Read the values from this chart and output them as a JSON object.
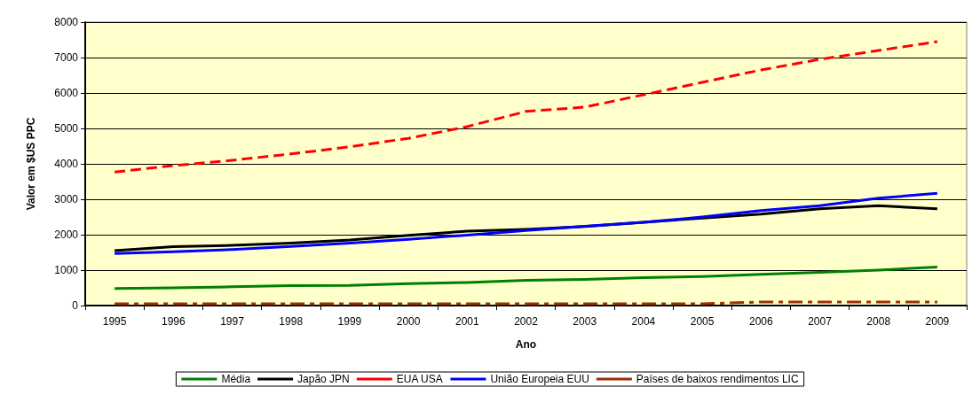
{
  "chart_data": {
    "type": "line",
    "xlabel": "Ano",
    "ylabel": "Valor em $US PPC",
    "categories": [
      "1995",
      "1996",
      "1997",
      "1998",
      "1999",
      "2000",
      "2001",
      "2002",
      "2003",
      "2004",
      "2005",
      "2006",
      "2007",
      "2008",
      "2009"
    ],
    "series": [
      {
        "name": "Média",
        "color": "#008000",
        "line_style": "solid",
        "values": [
          480,
          500,
          530,
          560,
          570,
          620,
          650,
          710,
          740,
          790,
          820,
          880,
          940,
          1000,
          1090
        ]
      },
      {
        "name": "Japão JPN",
        "color": "#000000",
        "line_style": "solid",
        "values": [
          1550,
          1660,
          1700,
          1760,
          1850,
          1980,
          2100,
          2150,
          2230,
          2350,
          2470,
          2580,
          2730,
          2820,
          2730
        ]
      },
      {
        "name": "EUA USA",
        "color": "#ff0000",
        "line_style": "dashed",
        "values": [
          3770,
          3950,
          4100,
          4280,
          4480,
          4720,
          5050,
          5480,
          5600,
          5950,
          6300,
          6650,
          6950,
          7200,
          7450
        ]
      },
      {
        "name": "União Europeia EUU",
        "color": "#0000ff",
        "line_style": "solid",
        "values": [
          1470,
          1520,
          1580,
          1670,
          1760,
          1870,
          1990,
          2120,
          2240,
          2350,
          2500,
          2680,
          2820,
          3030,
          3170
        ]
      },
      {
        "name": "Países de baixos rendimentos LIC",
        "color": "#993300",
        "line_style": "dashdot",
        "values": [
          50,
          50,
          50,
          50,
          50,
          50,
          50,
          50,
          50,
          50,
          50,
          100,
          100,
          100,
          100
        ]
      }
    ],
    "ylim": [
      0,
      8000
    ],
    "yticks": [
      0,
      1000,
      2000,
      3000,
      4000,
      5000,
      6000,
      7000,
      8000
    ],
    "grid": "y",
    "legend": "bottom",
    "marker": "none"
  }
}
